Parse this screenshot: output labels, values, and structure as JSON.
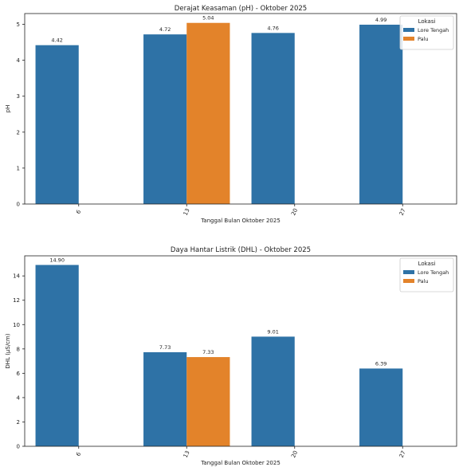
{
  "chart_data": [
    {
      "type": "bar",
      "title": "Derajat Keasaman (pH) - Oktober 2025",
      "xlabel": "Tanggal Bulan Oktober 2025",
      "ylabel": "pH",
      "categories": [
        "6",
        "13",
        "20",
        "27"
      ],
      "ylim": [
        0,
        5.3
      ],
      "yticks": [
        0,
        1,
        2,
        3,
        4,
        5
      ],
      "ytick_labels": [
        "0",
        "1",
        "2",
        "3",
        "4",
        "5"
      ],
      "grid": false,
      "legend": {
        "title": "Lokasi",
        "placement": "top-right"
      },
      "series": [
        {
          "name": "Lore Tengah",
          "color": "#2e72a6",
          "values": [
            4.42,
            4.72,
            4.76,
            4.99
          ],
          "labels": [
            "4.42",
            "4.72",
            "4.76",
            "4.99"
          ]
        },
        {
          "name": "Palu",
          "color": "#e3832a",
          "values": [
            null,
            5.04,
            null,
            null
          ],
          "labels": [
            null,
            "5.04",
            null,
            null
          ]
        }
      ]
    },
    {
      "type": "bar",
      "title": "Daya Hantar Listrik (DHL) - Oktober 2025",
      "xlabel": "Tanggal Bulan Oktober 2025",
      "ylabel": "DHL (µS/cm)",
      "categories": [
        "6",
        "13",
        "20",
        "27"
      ],
      "ylim": [
        0,
        15.65
      ],
      "yticks": [
        0,
        2,
        4,
        6,
        8,
        10,
        12,
        14
      ],
      "ytick_labels": [
        "0",
        "2",
        "4",
        "6",
        "8",
        "10",
        "12",
        "14"
      ],
      "grid": false,
      "legend": {
        "title": "Lokasi",
        "placement": "top-right"
      },
      "series": [
        {
          "name": "Lore Tengah",
          "color": "#2e72a6",
          "values": [
            14.9,
            7.73,
            9.01,
            6.39
          ],
          "labels": [
            "14.90",
            "7.73",
            "9.01",
            "6.39"
          ]
        },
        {
          "name": "Palu",
          "color": "#e3832a",
          "values": [
            null,
            7.33,
            null,
            null
          ],
          "labels": [
            null,
            "7.33",
            null,
            null
          ]
        }
      ]
    }
  ]
}
